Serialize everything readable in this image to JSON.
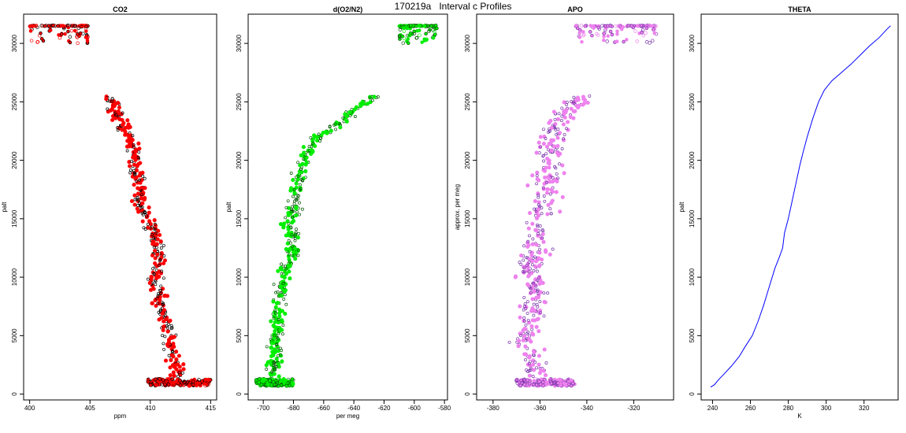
{
  "figure": {
    "title": "170219a   Interval c Profiles"
  },
  "chart_data": [
    {
      "type": "scatter",
      "title": "CO2",
      "xlabel": "ppm",
      "ylabel": "palt",
      "xlim": [
        399.5,
        415.5
      ],
      "ylim": [
        -500,
        32500
      ],
      "xticks": [
        400,
        405,
        410,
        415
      ],
      "yticks": [
        0,
        5000,
        10000,
        15000,
        20000,
        25000,
        30000
      ],
      "point_color": "#ff0000",
      "edge_color": "#000000",
      "profile": [
        [
          406.5,
          25500
        ],
        [
          407.0,
          24500
        ],
        [
          407.5,
          23500
        ],
        [
          408.0,
          22500
        ],
        [
          408.5,
          21500
        ],
        [
          408.8,
          20500
        ],
        [
          408.9,
          19500
        ],
        [
          409.0,
          18500
        ],
        [
          409.1,
          17500
        ],
        [
          409.2,
          16500
        ],
        [
          409.5,
          15500
        ],
        [
          410.0,
          14500
        ],
        [
          410.4,
          13500
        ],
        [
          410.6,
          12500
        ],
        [
          410.7,
          11500
        ],
        [
          410.5,
          10500
        ],
        [
          410.3,
          9500
        ],
        [
          410.6,
          8500
        ],
        [
          410.9,
          7500
        ],
        [
          411.2,
          6500
        ],
        [
          411.4,
          5500
        ],
        [
          411.6,
          4500
        ],
        [
          411.9,
          3500
        ],
        [
          412.1,
          2500
        ],
        [
          412.3,
          1500
        ]
      ],
      "spread": 0.9,
      "top_cluster": {
        "x": [
          400.0,
          405.0
        ],
        "y": [
          30000,
          31500
        ]
      },
      "bottom_cluster": {
        "x": [
          409.8,
          415.0
        ],
        "y": [
          700,
          1300
        ]
      }
    },
    {
      "type": "scatter",
      "title": "d(O2/N2)",
      "xlabel": "per meg",
      "ylabel": "palt",
      "xlim": [
        -710,
        -578
      ],
      "ylim": [
        -500,
        32500
      ],
      "xticks": [
        -700,
        -680,
        -660,
        -640,
        -620,
        -600,
        -580
      ],
      "yticks": [
        0,
        5000,
        10000,
        15000,
        20000,
        25000,
        30000
      ],
      "point_color": "#00ee00",
      "edge_color": "#005500",
      "profile": [
        [
          -626,
          25500
        ],
        [
          -638,
          24500
        ],
        [
          -646,
          23500
        ],
        [
          -658,
          22500
        ],
        [
          -666,
          21500
        ],
        [
          -670,
          20500
        ],
        [
          -674,
          19500
        ],
        [
          -676,
          18500
        ],
        [
          -678,
          17500
        ],
        [
          -678,
          16500
        ],
        [
          -680,
          15500
        ],
        [
          -684,
          14500
        ],
        [
          -681,
          13500
        ],
        [
          -680,
          12500
        ],
        [
          -682,
          11500
        ],
        [
          -686,
          10500
        ],
        [
          -687,
          9500
        ],
        [
          -688,
          8500
        ],
        [
          -690,
          7500
        ],
        [
          -691,
          6500
        ],
        [
          -690,
          5500
        ],
        [
          -693,
          4500
        ],
        [
          -692,
          3500
        ],
        [
          -693,
          2500
        ],
        [
          -694,
          1500
        ]
      ],
      "spread": 7,
      "top_cluster": {
        "x": [
          -610,
          -585
        ],
        "y": [
          30000,
          31500
        ]
      },
      "bottom_cluster": {
        "x": [
          -705,
          -680
        ],
        "y": [
          700,
          1300
        ]
      }
    },
    {
      "type": "scatter",
      "title": "APO",
      "xlabel": "",
      "ylabel": "approx. per meg",
      "xlim": [
        -387,
        -303
      ],
      "ylim": [
        -500,
        32500
      ],
      "xticks": [
        -380,
        -360,
        -340,
        -320
      ],
      "yticks": [
        0,
        5000,
        10000,
        15000,
        20000,
        25000,
        30000
      ],
      "point_color": "#ee82ee",
      "edge_color": "#7733aa",
      "profile": [
        [
          -342,
          25500
        ],
        [
          -348,
          24500
        ],
        [
          -350,
          23500
        ],
        [
          -354,
          22500
        ],
        [
          -355,
          21500
        ],
        [
          -356,
          20500
        ],
        [
          -356,
          19500
        ],
        [
          -357,
          18500
        ],
        [
          -357,
          17500
        ],
        [
          -358,
          16500
        ],
        [
          -359,
          15500
        ],
        [
          -362,
          14500
        ],
        [
          -360,
          13500
        ],
        [
          -361,
          12500
        ],
        [
          -362,
          11500
        ],
        [
          -363,
          10500
        ],
        [
          -363,
          9500
        ],
        [
          -362,
          8500
        ],
        [
          -363,
          7500
        ],
        [
          -364,
          6500
        ],
        [
          -364,
          5500
        ],
        [
          -366,
          4500
        ],
        [
          -364,
          3500
        ],
        [
          -363,
          2500
        ],
        [
          -362,
          1500
        ]
      ],
      "spread": 9,
      "top_cluster": {
        "x": [
          -345,
          -310
        ],
        "y": [
          30000,
          31500
        ]
      },
      "bottom_cluster": {
        "x": [
          -370,
          -345
        ],
        "y": [
          700,
          1300
        ]
      }
    },
    {
      "type": "line",
      "title": "THETA",
      "xlabel": "K",
      "ylabel": "palt",
      "xlim": [
        234,
        338
      ],
      "ylim": [
        -500,
        32500
      ],
      "xticks": [
        240,
        260,
        280,
        300,
        320
      ],
      "yticks": [
        0,
        5000,
        10000,
        15000,
        20000,
        25000,
        30000
      ],
      "line_color": "#0000ff",
      "points": [
        [
          239,
          600
        ],
        [
          241,
          800
        ],
        [
          243,
          1200
        ],
        [
          246,
          1700
        ],
        [
          250,
          2400
        ],
        [
          254,
          3200
        ],
        [
          257,
          4000
        ],
        [
          261,
          5000
        ],
        [
          264,
          6200
        ],
        [
          267,
          7600
        ],
        [
          270,
          9200
        ],
        [
          273,
          10800
        ],
        [
          275,
          11600
        ],
        [
          277,
          12500
        ],
        [
          278,
          13800
        ],
        [
          280,
          15000
        ],
        [
          282,
          16500
        ],
        [
          284,
          18000
        ],
        [
          286,
          19500
        ],
        [
          288,
          20800
        ],
        [
          290,
          22000
        ],
        [
          293,
          23600
        ],
        [
          296,
          25000
        ],
        [
          299,
          26000
        ],
        [
          303,
          26800
        ],
        [
          308,
          27500
        ],
        [
          313,
          28200
        ],
        [
          318,
          29000
        ],
        [
          323,
          29800
        ],
        [
          328,
          30500
        ],
        [
          332,
          31200
        ],
        [
          334,
          31500
        ]
      ]
    }
  ]
}
